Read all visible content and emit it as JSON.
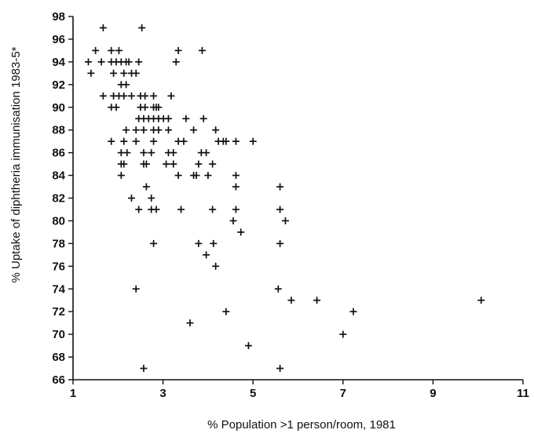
{
  "chart_data": {
    "type": "scatter",
    "title": "",
    "xlabel": "% Population >1 person/room, 1981",
    "ylabel": "% Uptake of diphtheria immunisation 1983-5*",
    "xlim": [
      1,
      11
    ],
    "ylim": [
      66,
      98
    ],
    "x_ticks": [
      1,
      3,
      5,
      7,
      9,
      11
    ],
    "y_ticks": [
      66,
      68,
      70,
      72,
      74,
      76,
      78,
      80,
      82,
      84,
      86,
      88,
      90,
      92,
      94,
      96,
      98
    ],
    "marker": "+",
    "grid": false,
    "legend": "none",
    "colors": {
      "marker": "#111111",
      "axis": "#111111",
      "background": "#ffffff"
    },
    "points": [
      {
        "x": 1.67,
        "y": 97
      },
      {
        "x": 2.53,
        "y": 97
      },
      {
        "x": 1.5,
        "y": 95
      },
      {
        "x": 1.85,
        "y": 95
      },
      {
        "x": 2.02,
        "y": 95
      },
      {
        "x": 3.34,
        "y": 95
      },
      {
        "x": 3.87,
        "y": 95
      },
      {
        "x": 1.34,
        "y": 94
      },
      {
        "x": 1.63,
        "y": 94
      },
      {
        "x": 1.85,
        "y": 94
      },
      {
        "x": 1.96,
        "y": 94
      },
      {
        "x": 2.07,
        "y": 94
      },
      {
        "x": 2.18,
        "y": 94
      },
      {
        "x": 2.24,
        "y": 94
      },
      {
        "x": 2.46,
        "y": 94
      },
      {
        "x": 3.29,
        "y": 94
      },
      {
        "x": 1.4,
        "y": 93
      },
      {
        "x": 1.9,
        "y": 93
      },
      {
        "x": 2.13,
        "y": 93
      },
      {
        "x": 2.3,
        "y": 93
      },
      {
        "x": 2.4,
        "y": 93
      },
      {
        "x": 2.07,
        "y": 92
      },
      {
        "x": 2.18,
        "y": 92
      },
      {
        "x": 1.67,
        "y": 91
      },
      {
        "x": 1.9,
        "y": 91
      },
      {
        "x": 2.02,
        "y": 91
      },
      {
        "x": 2.13,
        "y": 91
      },
      {
        "x": 2.3,
        "y": 91
      },
      {
        "x": 2.5,
        "y": 91
      },
      {
        "x": 2.6,
        "y": 91
      },
      {
        "x": 2.79,
        "y": 91
      },
      {
        "x": 3.18,
        "y": 91
      },
      {
        "x": 1.85,
        "y": 90
      },
      {
        "x": 1.96,
        "y": 90
      },
      {
        "x": 2.5,
        "y": 90
      },
      {
        "x": 2.6,
        "y": 90
      },
      {
        "x": 2.79,
        "y": 90
      },
      {
        "x": 2.85,
        "y": 90
      },
      {
        "x": 2.9,
        "y": 90
      },
      {
        "x": 2.46,
        "y": 89
      },
      {
        "x": 2.57,
        "y": 89
      },
      {
        "x": 2.68,
        "y": 89
      },
      {
        "x": 2.79,
        "y": 89
      },
      {
        "x": 2.9,
        "y": 89
      },
      {
        "x": 3.01,
        "y": 89
      },
      {
        "x": 3.12,
        "y": 89
      },
      {
        "x": 3.51,
        "y": 89
      },
      {
        "x": 3.9,
        "y": 89
      },
      {
        "x": 2.18,
        "y": 88
      },
      {
        "x": 2.4,
        "y": 88
      },
      {
        "x": 2.57,
        "y": 88
      },
      {
        "x": 2.79,
        "y": 88
      },
      {
        "x": 2.9,
        "y": 88
      },
      {
        "x": 3.12,
        "y": 88
      },
      {
        "x": 3.68,
        "y": 88
      },
      {
        "x": 4.17,
        "y": 88
      },
      {
        "x": 1.85,
        "y": 87
      },
      {
        "x": 2.13,
        "y": 87
      },
      {
        "x": 2.4,
        "y": 87
      },
      {
        "x": 2.79,
        "y": 87
      },
      {
        "x": 3.34,
        "y": 87
      },
      {
        "x": 3.46,
        "y": 87
      },
      {
        "x": 4.23,
        "y": 87
      },
      {
        "x": 4.34,
        "y": 87
      },
      {
        "x": 4.4,
        "y": 87
      },
      {
        "x": 4.62,
        "y": 87
      },
      {
        "x": 5.0,
        "y": 87
      },
      {
        "x": 2.07,
        "y": 86
      },
      {
        "x": 2.2,
        "y": 86
      },
      {
        "x": 2.57,
        "y": 86
      },
      {
        "x": 2.74,
        "y": 86
      },
      {
        "x": 3.12,
        "y": 86
      },
      {
        "x": 3.23,
        "y": 86
      },
      {
        "x": 3.85,
        "y": 86
      },
      {
        "x": 3.96,
        "y": 86
      },
      {
        "x": 2.07,
        "y": 85
      },
      {
        "x": 2.13,
        "y": 85
      },
      {
        "x": 2.57,
        "y": 85
      },
      {
        "x": 2.63,
        "y": 85
      },
      {
        "x": 3.07,
        "y": 85
      },
      {
        "x": 3.23,
        "y": 85
      },
      {
        "x": 3.79,
        "y": 85
      },
      {
        "x": 4.1,
        "y": 85
      },
      {
        "x": 2.07,
        "y": 84
      },
      {
        "x": 3.34,
        "y": 84
      },
      {
        "x": 3.68,
        "y": 84
      },
      {
        "x": 3.74,
        "y": 84
      },
      {
        "x": 4.0,
        "y": 84
      },
      {
        "x": 4.62,
        "y": 84
      },
      {
        "x": 2.63,
        "y": 83
      },
      {
        "x": 4.62,
        "y": 83
      },
      {
        "x": 5.6,
        "y": 83
      },
      {
        "x": 2.3,
        "y": 82
      },
      {
        "x": 2.74,
        "y": 82
      },
      {
        "x": 2.46,
        "y": 81
      },
      {
        "x": 2.74,
        "y": 81
      },
      {
        "x": 2.85,
        "y": 81
      },
      {
        "x": 3.4,
        "y": 81
      },
      {
        "x": 4.1,
        "y": 81
      },
      {
        "x": 4.62,
        "y": 81
      },
      {
        "x": 5.6,
        "y": 81
      },
      {
        "x": 4.56,
        "y": 80
      },
      {
        "x": 5.72,
        "y": 80
      },
      {
        "x": 4.73,
        "y": 79
      },
      {
        "x": 2.79,
        "y": 78
      },
      {
        "x": 3.79,
        "y": 78
      },
      {
        "x": 4.12,
        "y": 78
      },
      {
        "x": 5.6,
        "y": 78
      },
      {
        "x": 3.96,
        "y": 77
      },
      {
        "x": 4.17,
        "y": 76
      },
      {
        "x": 2.4,
        "y": 74
      },
      {
        "x": 5.56,
        "y": 74
      },
      {
        "x": 5.85,
        "y": 73
      },
      {
        "x": 6.42,
        "y": 73
      },
      {
        "x": 10.07,
        "y": 73
      },
      {
        "x": 4.4,
        "y": 72
      },
      {
        "x": 7.23,
        "y": 72
      },
      {
        "x": 3.6,
        "y": 71
      },
      {
        "x": 7.0,
        "y": 70
      },
      {
        "x": 4.9,
        "y": 69
      },
      {
        "x": 2.57,
        "y": 67
      },
      {
        "x": 5.6,
        "y": 67
      }
    ]
  }
}
